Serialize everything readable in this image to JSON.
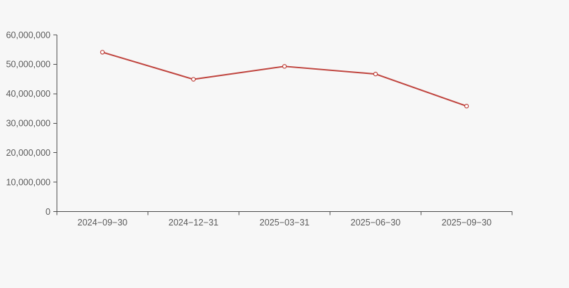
{
  "chart_data": {
    "type": "line",
    "title": "",
    "xlabel": "",
    "ylabel": "",
    "categories": [
      "2024−09−30",
      "2024−12−31",
      "2025−03−31",
      "2025−06−30",
      "2025−09−30"
    ],
    "series": [
      {
        "name": "series-1",
        "values": [
          54100000,
          44900000,
          49300000,
          46700000,
          35800000
        ]
      }
    ],
    "ylim": [
      0,
      60000000
    ],
    "y_ticks": [
      0,
      10000000,
      20000000,
      30000000,
      40000000,
      50000000,
      60000000
    ],
    "y_tick_labels": [
      "0",
      "10,000,000",
      "20,000,000",
      "30,000,000",
      "40,000,000",
      "50,000,000",
      "60,000,000"
    ],
    "grid": false,
    "legend_position": "none",
    "marker": "open-circle",
    "colors": {
      "line": "#c0453f",
      "marker_fill": "#ffffff",
      "background": "#f7f7f7",
      "axis": "#4d4d4d",
      "tick_label": "#595959"
    }
  }
}
